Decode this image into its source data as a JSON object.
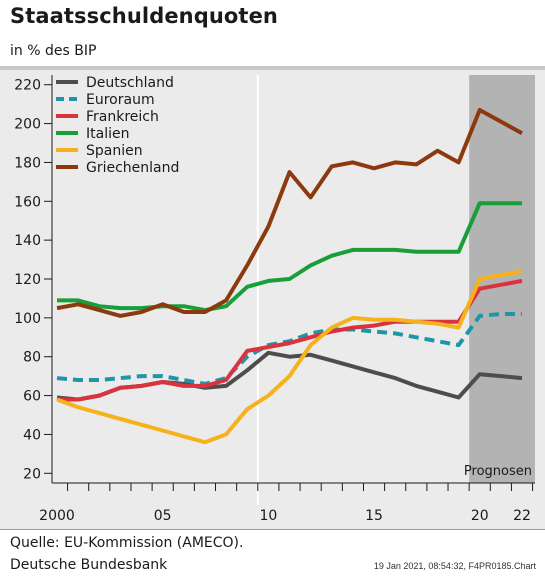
{
  "header": {
    "title": "Staatsschuldenquoten",
    "subtitle": "in % des BIP"
  },
  "footer": {
    "source_line1": "Quelle: EU-Kommission (AMECO).",
    "source_line2": "Deutsche Bundesbank",
    "stamp": "19 Jan 2021, 08:54:32, F4PR0185.Chart"
  },
  "chart_data": {
    "type": "line",
    "x": [
      2000,
      2001,
      2002,
      2003,
      2004,
      2005,
      2006,
      2007,
      2008,
      2009,
      2010,
      2011,
      2012,
      2013,
      2014,
      2015,
      2016,
      2017,
      2018,
      2019,
      2020,
      2021,
      2022
    ],
    "xtick_values": [
      2000,
      2005,
      2010,
      2015,
      2020,
      2022
    ],
    "xtick_labels": [
      "2000",
      "05",
      "10",
      "15",
      "20",
      "22"
    ],
    "ylim": [
      15,
      225
    ],
    "yticks": [
      20,
      40,
      60,
      80,
      100,
      120,
      140,
      160,
      180,
      200,
      220
    ],
    "grid": false,
    "legend_position": "top-left",
    "forecast_region": {
      "from": 2019.5,
      "to": 2022.5,
      "label": "Prognosen",
      "color": "#b3b3b3"
    },
    "vertical_marker": 2009.5,
    "series": [
      {
        "name": "Deutschland",
        "color": "#4d4d4d",
        "dash": false,
        "values": [
          59,
          58,
          60,
          64,
          65,
          67,
          66,
          64,
          65,
          73,
          82,
          80,
          81,
          78,
          75,
          72,
          69,
          65,
          62,
          59,
          71,
          70,
          69
        ]
      },
      {
        "name": "Euroraum",
        "color": "#1f95a8",
        "dash": true,
        "values": [
          69,
          68,
          68,
          69,
          70,
          70,
          68,
          66,
          69,
          80,
          86,
          88,
          92,
          94,
          94,
          93,
          92,
          90,
          88,
          86,
          101,
          102,
          102
        ]
      },
      {
        "name": "Frankreich",
        "color": "#d9343e",
        "dash": false,
        "values": [
          58,
          58,
          60,
          64,
          65,
          67,
          65,
          65,
          68,
          83,
          85,
          87,
          90,
          93,
          95,
          96,
          98,
          98,
          98,
          98,
          115,
          117,
          119
        ]
      },
      {
        "name": "Italien",
        "color": "#1a9e3a",
        "dash": false,
        "values": [
          109,
          109,
          106,
          105,
          105,
          106,
          106,
          104,
          106,
          116,
          119,
          120,
          127,
          132,
          135,
          135,
          135,
          134,
          134,
          134,
          159,
          159,
          159
        ]
      },
      {
        "name": "Spanien",
        "color": "#f6b21b",
        "dash": false,
        "values": [
          58,
          54,
          51,
          48,
          45,
          42,
          39,
          36,
          40,
          53,
          60,
          70,
          86,
          95,
          100,
          99,
          99,
          98,
          97,
          95,
          120,
          122,
          124
        ]
      },
      {
        "name": "Griechenland",
        "color": "#8c3a0d",
        "dash": false,
        "values": [
          105,
          107,
          104,
          101,
          103,
          107,
          103,
          103,
          109,
          127,
          147,
          175,
          162,
          178,
          180,
          177,
          180,
          179,
          186,
          180,
          207,
          201,
          195
        ]
      }
    ]
  }
}
